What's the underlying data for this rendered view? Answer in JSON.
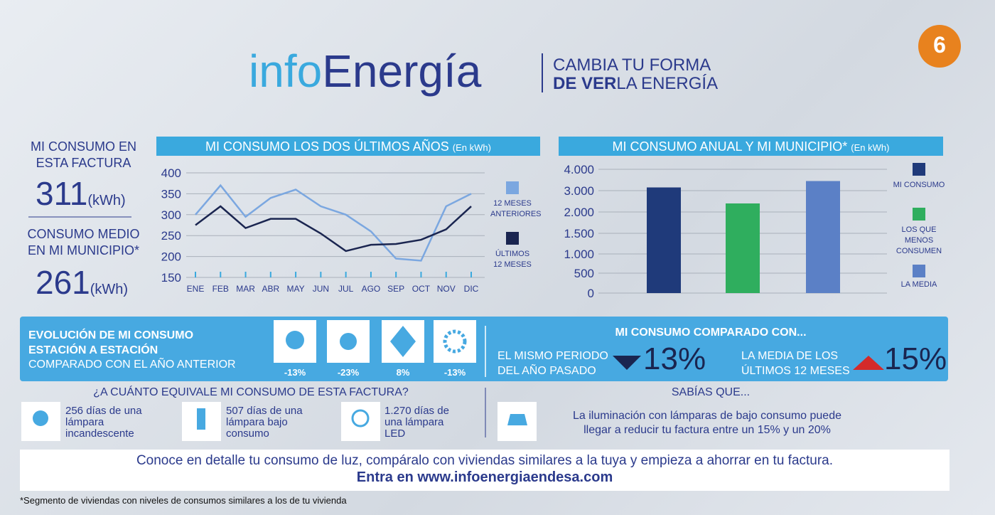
{
  "header": {
    "logo_a": "info",
    "logo_b": "Energía",
    "tag1": "CAMBIA TU FORMA",
    "tag2a": "DE VER",
    "tag2b": "LA ENERGÍA",
    "badge": "6"
  },
  "summary": {
    "label1": "MI CONSUMO EN ESTA FACTURA",
    "value1": "311",
    "unit1": "(kWh)",
    "label2": "CONSUMO MEDIO EN MI MUNICIPIO*",
    "value2": "261",
    "unit2": "(kWh)"
  },
  "chart_data": [
    {
      "type": "line",
      "title": "MI CONSUMO LOS DOS ÚLTIMOS AÑOS",
      "subtitle": "(En kWh)",
      "categories": [
        "ENE",
        "FEB",
        "MAR",
        "ABR",
        "MAY",
        "JUN",
        "JUL",
        "AGO",
        "SEP",
        "OCT",
        "NOV",
        "DIC"
      ],
      "series": [
        {
          "name": "12 MESES ANTERIORES",
          "color": "#7ba7e0",
          "values": [
            300,
            370,
            295,
            340,
            360,
            320,
            300,
            260,
            195,
            190,
            320,
            350
          ]
        },
        {
          "name": "ÚLTIMOS 12 MESES",
          "color": "#1a2550",
          "values": [
            275,
            320,
            268,
            290,
            290,
            255,
            213,
            228,
            230,
            240,
            265,
            320
          ]
        }
      ],
      "ylim": [
        150,
        400
      ],
      "yticks": [
        150,
        200,
        250,
        300,
        350,
        400
      ],
      "grid": true
    },
    {
      "type": "bar",
      "title": "MI CONSUMO ANUAL Y MI MUNICIPIO*",
      "subtitle": "(En kWh)",
      "categories": [
        "MI CONSUMO",
        "LOS QUE MENOS CONSUMEN",
        "LA MEDIA"
      ],
      "values": [
        3150,
        2400,
        3450
      ],
      "colors": [
        "#1f3a7a",
        "#2fae5e",
        "#5b80c6"
      ],
      "ylim": [
        0,
        4000
      ],
      "yticks": [
        {
          "value": 4000,
          "label": "4.000"
        },
        {
          "value": 3000,
          "label": "3.000"
        },
        {
          "value": 2000,
          "label": "2.000"
        },
        {
          "value": 1500,
          "label": "1.500"
        },
        {
          "value": 1000,
          "label": "1.000"
        },
        500,
        0
      ],
      "grid": true
    }
  ],
  "seasons": {
    "title": "EVOLUCIÓN DE MI CONSUMO ESTACIÓN A ESTACIÓN",
    "subtitle": "COMPARADO CON EL AÑO ANTERIOR",
    "values": [
      "-13%",
      "-23%",
      "8%",
      "-13%"
    ]
  },
  "compare": {
    "title": "MI CONSUMO COMPARADO CON...",
    "label1": "EL MISMO PERIODO DEL AÑO PASADO",
    "value1": "13%",
    "label2": "LA MEDIA DE LOS ÚLTIMOS 12 MESES",
    "value2": "15%"
  },
  "equivalence": {
    "title": "¿A CUÁNTO EQUIVALE MI CONSUMO DE ESTA FACTURA?",
    "items": [
      "256 días de una lámpara incandescente",
      "507 días de una lámpara bajo consumo",
      "1.270 días de una lámpara LED"
    ]
  },
  "tip": {
    "title": "SABÍAS QUE...",
    "text": "La iluminación con lámparas de bajo consumo puede llegar a reducir tu factura entre un 15% y un 20%"
  },
  "footer": {
    "line1": "Conoce en detalle tu consumo de luz, compáralo con viviendas similares a la tuya y empieza a ahorrar en tu factura.",
    "line2": "Entra en www.infoenergiaendesa.com",
    "note": "*Segmento de viviendas con niveles de consumos similares a los de tu vivienda"
  }
}
